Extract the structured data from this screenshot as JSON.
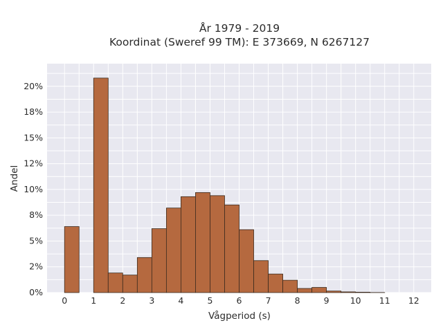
{
  "chart_data": {
    "type": "bar",
    "title_lines": [
      "År 1979 - 2019",
      "Koordinat (Sweref 99 TM): E 373669, N 6267127"
    ],
    "xlabel": "Vågperiod (s)",
    "ylabel": "Andel",
    "x_ticks": [
      0,
      1,
      2,
      3,
      4,
      5,
      6,
      7,
      8,
      9,
      10,
      11,
      12
    ],
    "x_tick_labels": [
      "0",
      "1",
      "2",
      "3",
      "4",
      "5",
      "6",
      "7",
      "8",
      "9",
      "10",
      "11",
      "12"
    ],
    "y_ticks": [
      0,
      2.5,
      5,
      7.5,
      10,
      12.5,
      15,
      17.5,
      20
    ],
    "y_tick_labels": [
      "0%",
      "2%",
      "5%",
      "8%",
      "10%",
      "12%",
      "15%",
      "18%",
      "20%"
    ],
    "xlim": [
      -0.6,
      12.6
    ],
    "ylim": [
      0,
      22.2
    ],
    "grid": true,
    "bin_width": 0.5,
    "bins_start": [
      0,
      1,
      1.5,
      2,
      2.5,
      3,
      3.5,
      4,
      4.5,
      5,
      5.5,
      6,
      6.5,
      7,
      7.5,
      8,
      8.5,
      9,
      9.5,
      10,
      10.5
    ],
    "values": [
      6.4,
      20.8,
      1.9,
      1.7,
      3.4,
      6.2,
      8.2,
      9.3,
      9.7,
      9.4,
      8.5,
      6.1,
      3.1,
      1.8,
      1.2,
      0.4,
      0.5,
      0.15,
      0.07,
      0.04,
      0.01
    ],
    "bar_color": "#b5693f",
    "background_color": "#e8e8f0"
  }
}
